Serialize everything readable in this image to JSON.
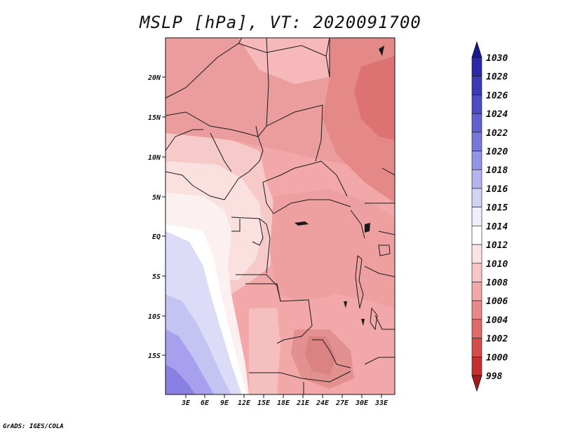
{
  "map": {
    "title": "MSLP [hPa], VT: 2020091700",
    "footer": "GrADS: IGES/COLA",
    "lon_ticks": [
      "3E",
      "6E",
      "9E",
      "12E",
      "15E",
      "18E",
      "21E",
      "24E",
      "27E",
      "30E",
      "33E"
    ],
    "lat_ticks": [
      "20N",
      "15N",
      "10N",
      "5N",
      "EQ",
      "5S",
      "10S",
      "15S"
    ],
    "colorbar_levels": [
      "1030",
      "1028",
      "1026",
      "1024",
      "1022",
      "1020",
      "1018",
      "1016",
      "1015",
      "1014",
      "1012",
      "1010",
      "1008",
      "1006",
      "1004",
      "1002",
      "1000",
      "998"
    ],
    "colorbar_colors": [
      "#1a1a8c",
      "#2828a8",
      "#3a3ab8",
      "#4c4cc4",
      "#6060d0",
      "#7878dc",
      "#9494e6",
      "#b4b4ee",
      "#d2d2f6",
      "#eeeefc",
      "#ffffff",
      "#fde4e4",
      "#f8c6c6",
      "#f0a8a8",
      "#e88888",
      "#e06a6a",
      "#d44c4c",
      "#c43030",
      "#a81a1a"
    ]
  }
}
